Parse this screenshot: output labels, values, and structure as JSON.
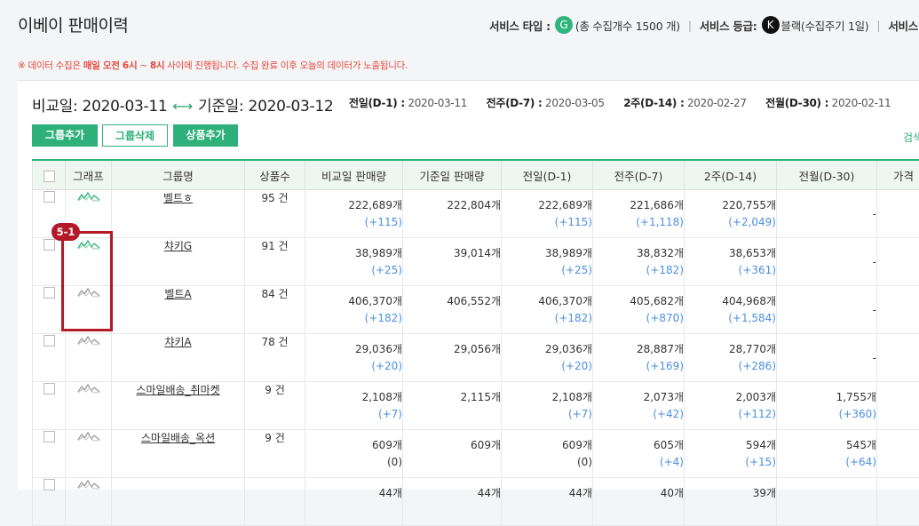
{
  "header": {
    "title": "이베이 판매이력",
    "service_type_label": "서비스 타입 :",
    "service_type_badge": "G",
    "service_type_value": "(총 수집개수 1500 개)",
    "service_grade_label": "서비스 등급:",
    "service_grade_badge": "K",
    "service_grade_value": "블랙(수집주기 1일)",
    "service_extra_label": "서비스 (",
    "separator": "|"
  },
  "notice": {
    "prefix": "※ 데이터 수집은 ",
    "bold1": "매일 오전 6시",
    "mid": " ~ ",
    "bold2": "8시",
    "suffix": " 사이에 진행됩니다. 수집 완료 이후 오늘의 데이터가 노출됩니다."
  },
  "compare": {
    "compare_label": "비교일: 2020-03-11",
    "arrow": "⟷",
    "base_label": "기준일: 2020-03-12",
    "d1_key": "전일(D-1) :",
    "d1_val": "2020-03-11",
    "d7_key": "전주(D-7) :",
    "d7_val": "2020-03-05",
    "d14_key": "2주(D-14) :",
    "d14_val": "2020-02-27",
    "d30_key": "전월(D-30) :",
    "d30_val": "2020-02-11"
  },
  "toolbar": {
    "add_group": "그룹추가",
    "delete_group": "그룹삭제",
    "add_product": "상품추가",
    "search": "검색"
  },
  "table": {
    "headers": [
      "그래프",
      "그룹명",
      "상품수",
      "비교일 판매량",
      "기준일 판매량",
      "전일(D-1)",
      "전주(D-7)",
      "2주(D-14)",
      "전월(D-30)",
      "가격"
    ],
    "rows": [
      {
        "name": "벨트ㅎ",
        "count": "95 건",
        "cmp": "222,689개",
        "cmp_d": "(+115)",
        "base": "222,804개",
        "d1": "222,689개",
        "d1_d": "(+115)",
        "d7": "221,686개",
        "d7_d": "(+1,118)",
        "d14": "220,755개",
        "d14_d": "(+2,049)",
        "d30": "-",
        "d30_d": ""
      },
      {
        "name": "챠키G",
        "count": "91 건",
        "cmp": "38,989개",
        "cmp_d": "(+25)",
        "base": "39,014개",
        "d1": "38,989개",
        "d1_d": "(+25)",
        "d7": "38,832개",
        "d7_d": "(+182)",
        "d14": "38,653개",
        "d14_d": "(+361)",
        "d30": "-",
        "d30_d": ""
      },
      {
        "name": "벨트A",
        "count": "84 건",
        "cmp": "406,370개",
        "cmp_d": "(+182)",
        "base": "406,552개",
        "d1": "406,370개",
        "d1_d": "(+182)",
        "d7": "405,682개",
        "d7_d": "(+870)",
        "d14": "404,968개",
        "d14_d": "(+1,584)",
        "d30": "-",
        "d30_d": ""
      },
      {
        "name": "챠키A",
        "count": "78 건",
        "cmp": "29,036개",
        "cmp_d": "(+20)",
        "base": "29,056개",
        "d1": "29,036개",
        "d1_d": "(+20)",
        "d7": "28,887개",
        "d7_d": "(+169)",
        "d14": "28,770개",
        "d14_d": "(+286)",
        "d30": "-",
        "d30_d": ""
      },
      {
        "name": "스마일배송_취마켓",
        "count": "9 건",
        "cmp": "2,108개",
        "cmp_d": "(+7)",
        "base": "2,115개",
        "d1": "2,108개",
        "d1_d": "(+7)",
        "d7": "2,073개",
        "d7_d": "(+42)",
        "d14": "2,003개",
        "d14_d": "(+112)",
        "d30": "1,755개",
        "d30_d": "(+360)"
      },
      {
        "name": "스마일배송_옥션",
        "count": "9 건",
        "cmp": "609개",
        "cmp_d": "(0)",
        "base": "609개",
        "d1": "609개",
        "d1_d": "(0)",
        "d7": "605개",
        "d7_d": "(+4)",
        "d14": "594개",
        "d14_d": "(+15)",
        "d30": "545개",
        "d30_d": "(+64)"
      },
      {
        "name": "",
        "count": "",
        "cmp": "44개",
        "cmp_d": "",
        "base": "44개",
        "d1": "44개",
        "d1_d": "",
        "d7": "40개",
        "d7_d": "",
        "d14": "39개",
        "d14_d": "",
        "d30": "",
        "d30_d": ""
      }
    ]
  },
  "annotation": {
    "label": "5-1"
  },
  "colors": {
    "accent": "#2eb07a",
    "highlight": "#b31927",
    "delta": "#4a90e2",
    "notice": "#e5483c"
  }
}
